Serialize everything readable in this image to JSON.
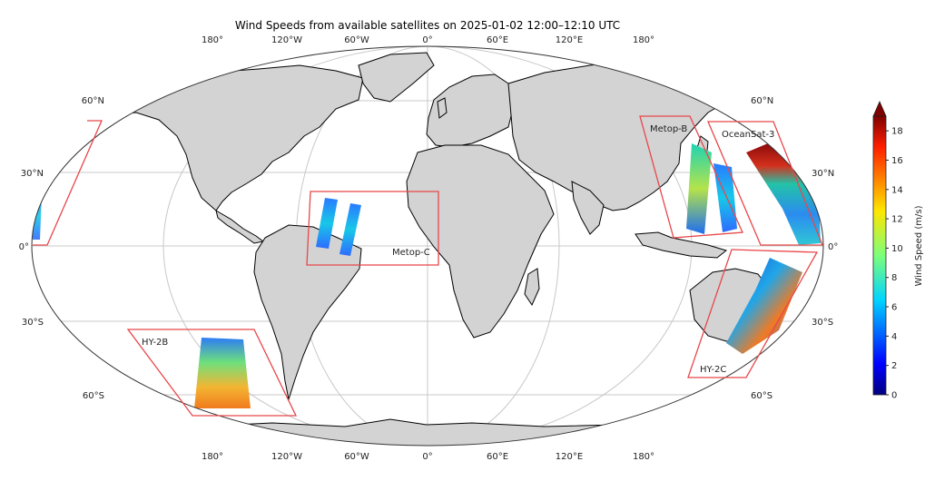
{
  "title": "Wind Speeds from available satellites on 2025-01-02 12:00–12:10 UTC",
  "lon_labels_top": [
    "180°",
    "120°W",
    "60°W",
    "0°",
    "60°E",
    "120°E",
    "180°"
  ],
  "lon_labels_bottom": [
    "180°",
    "120°W",
    "60°W",
    "0°",
    "60°E",
    "120°E",
    "180°"
  ],
  "lat_labels_left": [
    "60°N",
    "30°N",
    "0°",
    "30°S",
    "60°S"
  ],
  "lat_labels_right": [
    "60°N",
    "30°N",
    "0°",
    "30°S",
    "60°S"
  ],
  "satellites": [
    {
      "name": "Metop-B"
    },
    {
      "name": "OceanSat-3"
    },
    {
      "name": "Metop-C"
    },
    {
      "name": "HY-2B"
    },
    {
      "name": "HY-2C"
    }
  ],
  "colorbar": {
    "label": "Wind Speed (m/s)",
    "ticks": [
      "0",
      "2",
      "4",
      "6",
      "8",
      "10",
      "12",
      "14",
      "16",
      "18"
    ],
    "range": [
      0,
      19
    ],
    "colormap": "jet"
  },
  "colors": {
    "land": "#d3d3d3",
    "coastline": "#000000",
    "grid": "#c8c8c8",
    "box": "#e8474a"
  }
}
